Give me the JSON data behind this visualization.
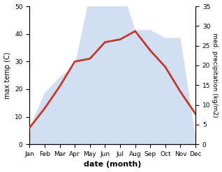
{
  "months": [
    "Jan",
    "Feb",
    "Mar",
    "Apr",
    "May",
    "Jun",
    "Jul",
    "Aug",
    "Sep",
    "Oct",
    "Nov",
    "Dec"
  ],
  "temp": [
    6,
    13,
    21,
    30,
    31,
    37,
    38,
    41,
    34,
    28,
    19,
    11
  ],
  "precip": [
    4,
    13,
    17,
    20,
    38,
    44,
    41,
    29,
    29,
    27,
    27,
    2
  ],
  "temp_color": "#c0392b",
  "precip_color": "#aec6e8",
  "precip_alpha": 0.55,
  "temp_ylim": [
    0,
    50
  ],
  "precip_ylim": [
    0,
    35
  ],
  "temp_yticks": [
    0,
    10,
    20,
    30,
    40,
    50
  ],
  "precip_yticks": [
    0,
    5,
    10,
    15,
    20,
    25,
    30,
    35
  ],
  "ylabel_left": "max temp (C)",
  "ylabel_right": "med. precipitation (kg/m2)",
  "xlabel": "date (month)",
  "linewidth": 2.0,
  "bg_color": "#ffffff"
}
